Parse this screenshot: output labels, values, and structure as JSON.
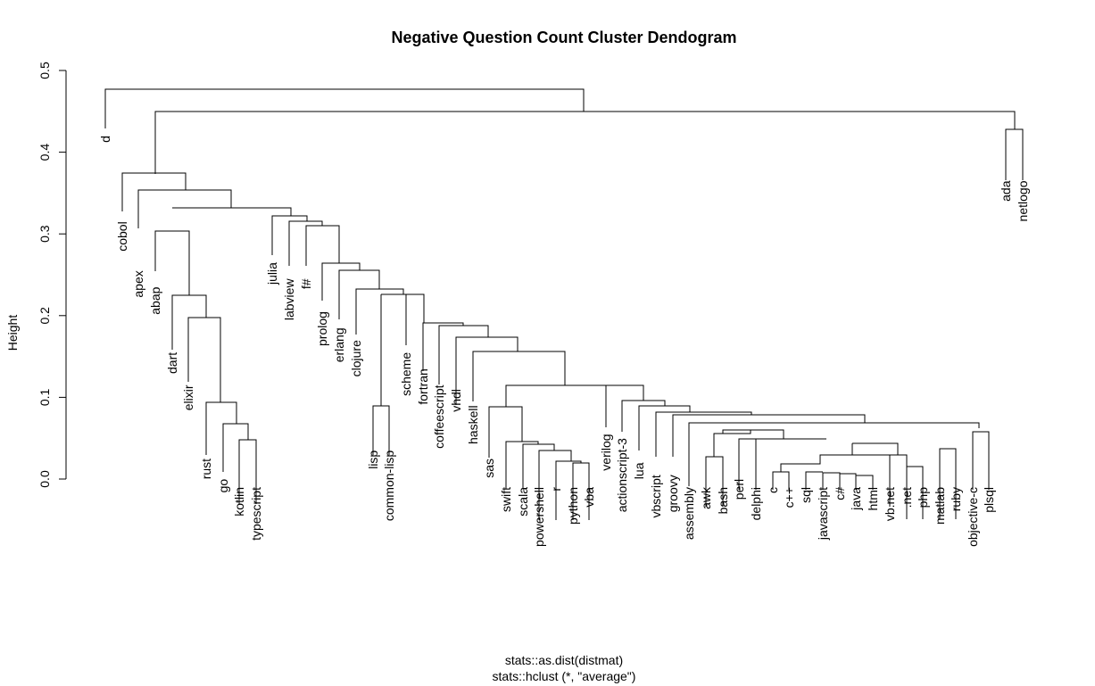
{
  "title": "Negative Question Count Cluster Dendogram",
  "ylabel": "Height",
  "subtitle_lines": [
    "stats::as.dist(distmat)",
    "stats::hclust (*, \"average\")"
  ],
  "yaxis": {
    "min": 0,
    "max": 0.5,
    "ticks": [
      "0.0",
      "0.1",
      "0.2",
      "0.3",
      "0.4",
      "0.5"
    ]
  },
  "dendrogram": {
    "method": "average",
    "leaves": [
      {
        "label": "d",
        "height": 0.43
      },
      {
        "label": "cobol",
        "height": 0.325
      },
      {
        "label": "apex",
        "height": 0.265
      },
      {
        "label": "abap",
        "height": 0.245
      },
      {
        "label": "dart",
        "height": 0.165
      },
      {
        "label": "elixir",
        "height": 0.125
      },
      {
        "label": "rust",
        "height": 0.035
      },
      {
        "label": "go",
        "height": 0.01
      },
      {
        "label": "kotlin",
        "height": 0.0
      },
      {
        "label": "typescript",
        "height": 0.0
      },
      {
        "label": "julia",
        "height": 0.275
      },
      {
        "label": "labview",
        "height": 0.255
      },
      {
        "label": "f#",
        "height": 0.255
      },
      {
        "label": "prolog",
        "height": 0.215
      },
      {
        "label": "erlang",
        "height": 0.195
      },
      {
        "label": "clojure",
        "height": 0.18
      },
      {
        "label": "lisp",
        "height": 0.045
      },
      {
        "label": "common-lisp",
        "height": 0.045
      },
      {
        "label": "scheme",
        "height": 0.165
      },
      {
        "label": "fortran",
        "height": 0.145
      },
      {
        "label": "coffeescript",
        "height": 0.125
      },
      {
        "label": "vhdl",
        "height": 0.12
      },
      {
        "label": "haskell",
        "height": 0.1
      },
      {
        "label": "sas",
        "height": 0.035
      },
      {
        "label": "swift",
        "height": 0.0
      },
      {
        "label": "scala",
        "height": 0.0
      },
      {
        "label": "powershell",
        "height": 0.0
      },
      {
        "label": "r",
        "height": 0.0
      },
      {
        "label": "python",
        "height": 0.0
      },
      {
        "label": "vba",
        "height": 0.0
      },
      {
        "label": "verilog",
        "height": 0.065
      },
      {
        "label": "actionscript-3",
        "height": 0.06
      },
      {
        "label": "lua",
        "height": 0.03
      },
      {
        "label": "vbscript",
        "height": 0.015
      },
      {
        "label": "groovy",
        "height": 0.015
      },
      {
        "label": "assembly",
        "height": 0.0
      },
      {
        "label": "awk",
        "height": 0.0
      },
      {
        "label": "bash",
        "height": 0.0
      },
      {
        "label": "perl",
        "height": 0.01
      },
      {
        "label": "delphi",
        "height": 0.0
      },
      {
        "label": "c",
        "height": 0.0
      },
      {
        "label": "c++",
        "height": 0.0
      },
      {
        "label": "sql",
        "height": 0.0
      },
      {
        "label": "javascript",
        "height": 0.0
      },
      {
        "label": "c#",
        "height": 0.0
      },
      {
        "label": "java",
        "height": 0.0
      },
      {
        "label": "html",
        "height": 0.0
      },
      {
        "label": "vb.net",
        "height": 0.0
      },
      {
        "label": ".net",
        "height": 0.0
      },
      {
        "label": "php",
        "height": 0.0
      },
      {
        "label": "matlab",
        "height": 0.0
      },
      {
        "label": "ruby",
        "height": 0.0
      },
      {
        "label": "objective-c",
        "height": 0.0
      },
      {
        "label": "plsql",
        "height": 0.0
      },
      {
        "label": "ada",
        "height": 0.375
      },
      {
        "label": "netlogo",
        "height": 0.375
      }
    ],
    "merges": [
      [
        [
          "d"
        ],
        0.478
      ],
      [
        [
          "ada",
          "netlogo"
        ],
        0.428
      ],
      [
        [
          "kotlin",
          "typescript"
        ],
        0.048
      ],
      [
        [
          "go",
          "kotlin",
          "typescript"
        ],
        0.068
      ],
      [
        [
          "rust",
          "go",
          "kotlin",
          "typescript"
        ],
        0.094
      ],
      [
        [
          "elixir",
          "rust",
          "go",
          "kotlin",
          "typescript"
        ],
        0.197
      ],
      [
        [
          "dart",
          "elixir",
          "rust",
          "go",
          "kotlin",
          "typescript"
        ],
        0.225
      ],
      [
        [
          "abap",
          "dart",
          "elixir",
          "rust",
          "go",
          "kotlin",
          "typescript"
        ],
        0.303
      ],
      [
        [
          "lisp",
          "common-lisp"
        ],
        0.09
      ],
      [
        [
          "python",
          "vba"
        ],
        0.019
      ],
      [
        [
          "r",
          "python",
          "vba"
        ],
        0.021
      ],
      [
        [
          "powershell",
          "r",
          "python",
          "vba"
        ],
        0.04
      ],
      [
        [
          "scala",
          "powershell",
          "r",
          "python",
          "vba"
        ],
        0.043
      ],
      [
        [
          "swift",
          "scala",
          "powershell",
          "r",
          "python",
          "vba"
        ],
        0.046
      ],
      [
        [
          "sas",
          "swift",
          "scala",
          "powershell",
          "r",
          "python",
          "vba"
        ],
        0.088
      ],
      [
        [
          "awk",
          "bash"
        ],
        0.026
      ],
      [
        [
          "c",
          "c++"
        ],
        0.009
      ],
      [
        [
          "java",
          "html"
        ],
        0.005
      ],
      [
        [
          "c#",
          "java",
          "html"
        ],
        0.007
      ],
      [
        [
          "javascript",
          "c#",
          "java",
          "html"
        ],
        0.008
      ],
      [
        [
          "sql",
          "javascript",
          "c#",
          "java",
          "html"
        ],
        0.008
      ],
      [
        [
          ".net",
          "php"
        ],
        0.015
      ],
      [
        [
          "objective-c",
          "plsql"
        ],
        0.058
      ],
      [
        [
          "ada",
          "netlogo",
          "rest"
        ],
        0.45
      ]
    ]
  }
}
